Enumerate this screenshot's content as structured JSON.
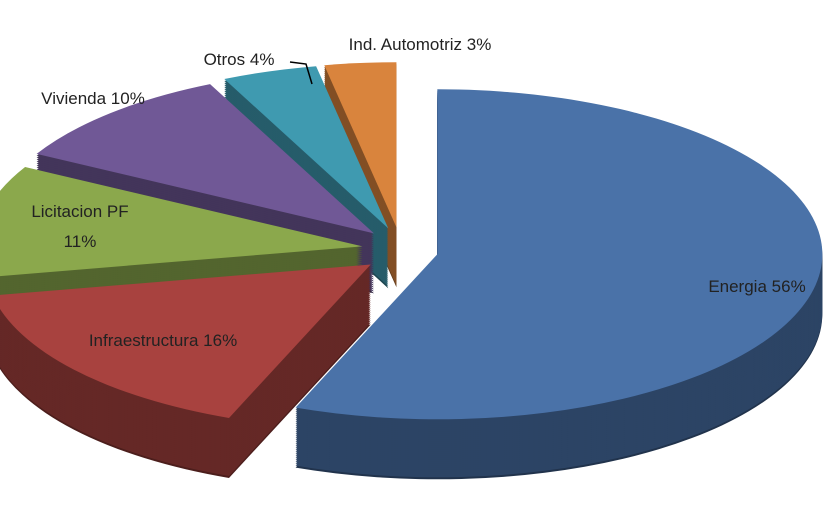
{
  "chart_data": {
    "type": "pie3d",
    "categories": [
      "Energia",
      "Infraestructura",
      "Licitacion PF",
      "Vivienda",
      "Otros",
      "Ind. Automotriz"
    ],
    "values": [
      56,
      16,
      11,
      10,
      4,
      3
    ],
    "value_labels": [
      "56%",
      "16%",
      "11%",
      "10%",
      "4%",
      "3%"
    ],
    "colors": [
      "#4a72a8",
      "#a8423f",
      "#8ba84c",
      "#705896",
      "#3f9ab0",
      "#d9843d"
    ]
  }
}
